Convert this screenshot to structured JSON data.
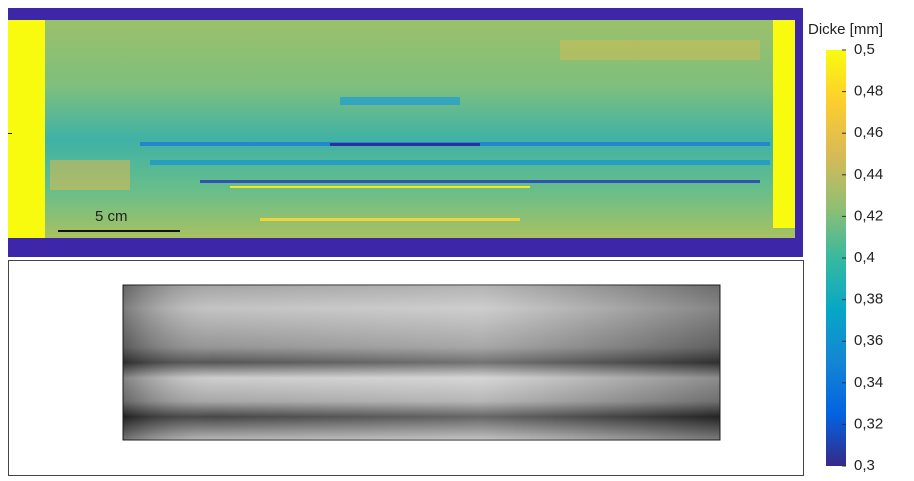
{
  "chart_data": {
    "type": "heatmap",
    "colorbar_label": "Dicke [mm]",
    "clim": [
      0.3,
      0.5
    ],
    "cticks": [
      {
        "value": 0.3,
        "label": "0,3"
      },
      {
        "value": 0.32,
        "label": "0,32"
      },
      {
        "value": 0.34,
        "label": "0,34"
      },
      {
        "value": 0.36,
        "label": "0,36"
      },
      {
        "value": 0.38,
        "label": "0,38"
      },
      {
        "value": 0.4,
        "label": "0,4"
      },
      {
        "value": 0.42,
        "label": "0,42"
      },
      {
        "value": 0.44,
        "label": "0,44"
      },
      {
        "value": 0.46,
        "label": "0,46"
      },
      {
        "value": 0.48,
        "label": "0,48"
      },
      {
        "value": 0.5,
        "label": "0,5"
      }
    ],
    "colormap": [
      "#352a87",
      "#0363e1",
      "#1485d4",
      "#06a7c6",
      "#38b99e",
      "#92bf73",
      "#d9ba56",
      "#fcce2e",
      "#f9fb0e"
    ],
    "scale_bar": "5 cm"
  }
}
